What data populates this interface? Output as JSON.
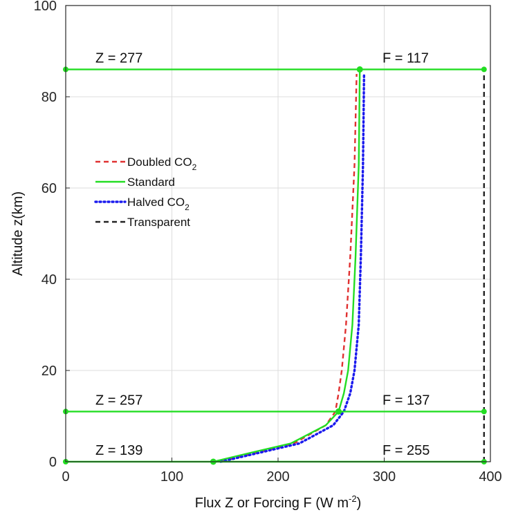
{
  "chart_data": {
    "type": "line",
    "title": "",
    "xlabel": "Flux Z or Forcing F (W m",
    "xlabel_sup": "-2",
    "xlabel_end": ")",
    "ylabel": "Altitude z(km)",
    "xlim": [
      0,
      400
    ],
    "ylim": [
      0,
      100
    ],
    "xticks": [
      0,
      100,
      200,
      300,
      400
    ],
    "yticks": [
      0,
      20,
      40,
      60,
      80,
      100
    ],
    "grid": true,
    "legend_position": "upper-left",
    "series": [
      {
        "name": "Doubled CO",
        "name_sub": "2",
        "color": "#e03030",
        "dash": "dashed",
        "x": [
          146,
          180,
          215,
          245,
          254,
          257,
          260,
          264,
          268,
          272,
          274
        ],
        "y": [
          0,
          2,
          4,
          8,
          11,
          15,
          20,
          30,
          45,
          65,
          85
        ]
      },
      {
        "name": "Standard",
        "color": "#22dd22",
        "dash": "solid",
        "x": [
          139,
          175,
          212,
          245,
          257,
          262,
          266,
          270,
          273,
          276,
          277
        ],
        "y": [
          0,
          2,
          4,
          8,
          11,
          15,
          20,
          30,
          45,
          65,
          86
        ]
      },
      {
        "name": "Halved CO",
        "name_sub": "2",
        "color": "#1a1aee",
        "dash": "dotted",
        "x": [
          146,
          183,
          220,
          252,
          262,
          268,
          272,
          276,
          278,
          280,
          281
        ],
        "y": [
          0,
          2,
          4,
          8,
          11,
          15,
          20,
          30,
          45,
          65,
          85
        ]
      },
      {
        "name": "Transparent",
        "color": "#222222",
        "dash": "dashed",
        "x": [
          394,
          394
        ],
        "y": [
          0,
          86
        ]
      }
    ],
    "levels": [
      {
        "z": 86,
        "flux": 277,
        "z_label": "Z = 277",
        "f_label": "F = 117"
      },
      {
        "z": 11,
        "flux": 257,
        "z_label": "Z = 257",
        "f_label": "F = 137"
      },
      {
        "z": 0,
        "flux": 139,
        "z_label": "Z = 139",
        "f_label": "F = 255"
      }
    ],
    "level_line_color": "#22dd22",
    "transparent_flux": 394
  }
}
